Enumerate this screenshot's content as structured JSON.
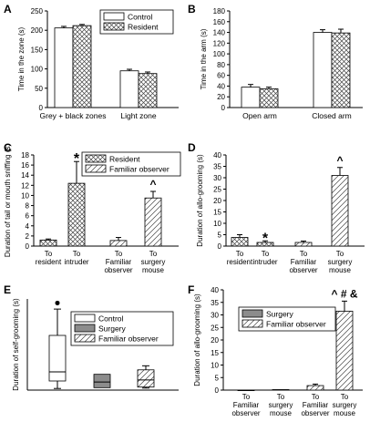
{
  "colors": {
    "plain": "#ffffff",
    "surgery": "#8c8c8c",
    "hatch": "#444444"
  },
  "chart_data": [
    {
      "panel": "A",
      "type": "bar",
      "ylabel": "Time in the zone (s)",
      "ylim": [
        0,
        250
      ],
      "yticks": [
        0,
        50,
        100,
        150,
        200,
        250
      ],
      "categories": [
        "Grey + black zones",
        "Light zone"
      ],
      "series": [
        {
          "name": "Control",
          "pattern": "plain",
          "values": [
            206,
            95
          ],
          "errors": [
            4,
            4
          ]
        },
        {
          "name": "Resident",
          "pattern": "crosshatch",
          "values": [
            212,
            88
          ],
          "errors": [
            3,
            4
          ]
        }
      ],
      "legend": "top-right"
    },
    {
      "panel": "B",
      "type": "bar",
      "ylabel": "Time in the arm (s)",
      "ylim": [
        0,
        180
      ],
      "yticks": [
        0,
        20,
        40,
        60,
        80,
        100,
        120,
        140,
        160,
        180
      ],
      "categories": [
        "Open arm",
        "Closed arm"
      ],
      "series": [
        {
          "name": "Control",
          "pattern": "plain",
          "values": [
            38,
            140
          ],
          "errors": [
            5,
            5
          ]
        },
        {
          "name": "Resident",
          "pattern": "crosshatch",
          "values": [
            35,
            139
          ],
          "errors": [
            3,
            7
          ]
        }
      ]
    },
    {
      "panel": "C",
      "type": "bar",
      "ylabel": "Duration of tail or mouth sniffing (s)",
      "ylim": [
        0,
        18
      ],
      "yticks": [
        0,
        2,
        4,
        6,
        8,
        10,
        12,
        14,
        16,
        18
      ],
      "legend_items": [
        {
          "name": "Resident",
          "pattern": "crosshatch"
        },
        {
          "name": "Familiar observer",
          "pattern": "diagonal"
        }
      ],
      "bars": [
        {
          "label": "To resident",
          "pattern": "crosshatch",
          "value": 1.2,
          "error": 0.2,
          "mark": ""
        },
        {
          "label": "To intruder",
          "pattern": "crosshatch",
          "value": 12.4,
          "error": 4.3,
          "mark": "*"
        },
        {
          "label": "To Familiar observer",
          "pattern": "diagonal",
          "value": 1.1,
          "error": 0.6,
          "mark": ""
        },
        {
          "label": "To surgery mouse",
          "pattern": "diagonal",
          "value": 9.5,
          "error": 1.3,
          "mark": "^"
        }
      ]
    },
    {
      "panel": "D",
      "type": "bar",
      "ylabel": "Duration of allo-grooming (s)",
      "ylim": [
        0,
        40
      ],
      "yticks": [
        0,
        5,
        10,
        15,
        20,
        25,
        30,
        35,
        40
      ],
      "bars": [
        {
          "label": "To resident",
          "pattern": "crosshatch",
          "value": 3.8,
          "error": 1.2,
          "mark": ""
        },
        {
          "label": "To intruder",
          "pattern": "crosshatch",
          "value": 1.6,
          "error": 0.7,
          "mark": "*"
        },
        {
          "label": "To Familiar observer",
          "pattern": "diagonal",
          "value": 1.6,
          "error": 0.6,
          "mark": ""
        },
        {
          "label": "To surgery mouse",
          "pattern": "diagonal",
          "value": 31,
          "error": 3.5,
          "mark": "^"
        }
      ]
    },
    {
      "panel": "E",
      "type": "box",
      "ylabel": "Duration of self-grooming (s)",
      "legend_items": [
        {
          "name": "Control",
          "pattern": "plain"
        },
        {
          "name": "Surgery",
          "pattern": "solid"
        },
        {
          "name": "Familiar observer",
          "pattern": "diagonal"
        }
      ],
      "boxes": [
        {
          "name": "Control",
          "pattern": "plain",
          "min": 0.8,
          "q1": 4.5,
          "median": 9,
          "q3": 27,
          "max": 40,
          "outlier": 43
        },
        {
          "name": "Surgery",
          "pattern": "solid",
          "min": 1.2,
          "q1": 1.2,
          "median": 4,
          "q3": 7.8,
          "max": 7.8,
          "outlier": null
        },
        {
          "name": "Familiar observer",
          "pattern": "diagonal",
          "min": 1,
          "q1": 1.5,
          "median": 5,
          "q3": 10,
          "max": 12,
          "outlier": null
        }
      ],
      "ylim": [
        0,
        45
      ]
    },
    {
      "panel": "F",
      "type": "bar",
      "ylabel": "Duration of allo-grooming (s)",
      "ylim": [
        0,
        40
      ],
      "yticks": [
        0,
        5,
        10,
        15,
        20,
        25,
        30,
        35,
        40
      ],
      "legend_items": [
        {
          "name": "Surgery",
          "pattern": "solid"
        },
        {
          "name": "Familiar observer",
          "pattern": "diagonal"
        }
      ],
      "bars": [
        {
          "label": "To Familiar observer",
          "pattern": "solid",
          "value": 0,
          "error": 0,
          "mark": ""
        },
        {
          "label": "To surgery mouse",
          "pattern": "solid",
          "value": 0.2,
          "error": 0,
          "mark": ""
        },
        {
          "label": "To Familiar observer",
          "pattern": "diagonal",
          "value": 1.8,
          "error": 0.6,
          "mark": ""
        },
        {
          "label": "To surgery mouse",
          "pattern": "diagonal",
          "value": 31.5,
          "error": 4,
          "mark": "^ # &"
        }
      ]
    }
  ]
}
